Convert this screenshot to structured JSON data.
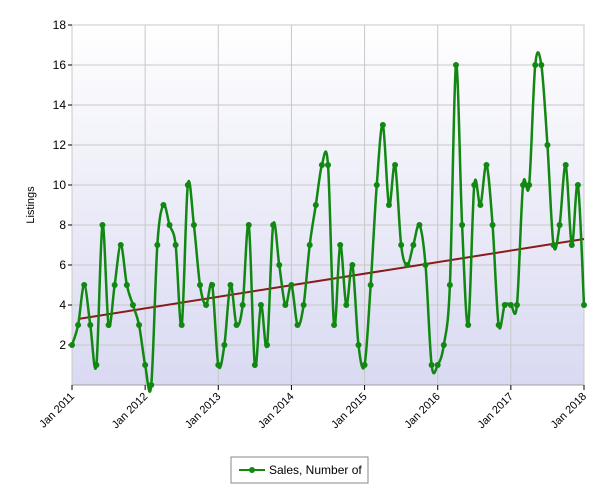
{
  "chart_data": {
    "type": "line",
    "title": "",
    "xlabel": "",
    "ylabel": "Listings",
    "ylim": [
      0,
      18
    ],
    "yticks": [
      2,
      4,
      6,
      8,
      10,
      12,
      14,
      16,
      18
    ],
    "xticks": [
      "Jan 2011",
      "Jan 2012",
      "Jan 2013",
      "Jan 2014",
      "Jan 2015",
      "Jan 2016",
      "Jan 2017",
      "Jan 2018"
    ],
    "x_start": "2011-01",
    "x_end": "2018-01",
    "grid": true,
    "legend": {
      "position": "bottom-center",
      "entries": [
        "Sales, Number of"
      ]
    },
    "colors": {
      "plot_bg_top": "#ffffff",
      "plot_bg_bottom": "#d9d9f2",
      "series": "#118811",
      "trend": "#8b1a1a",
      "grid": "#c8c8c8"
    },
    "series": [
      {
        "name": "Sales, Number of",
        "x": [
          "2011-01",
          "2011-02",
          "2011-03",
          "2011-04",
          "2011-05",
          "2011-06",
          "2011-07",
          "2011-08",
          "2011-09",
          "2011-10",
          "2011-11",
          "2011-12",
          "2012-01",
          "2012-02",
          "2012-03",
          "2012-04",
          "2012-05",
          "2012-06",
          "2012-07",
          "2012-08",
          "2012-09",
          "2012-10",
          "2012-11",
          "2012-12",
          "2013-01",
          "2013-02",
          "2013-03",
          "2013-04",
          "2013-05",
          "2013-06",
          "2013-07",
          "2013-08",
          "2013-09",
          "2013-10",
          "2013-11",
          "2013-12",
          "2014-01",
          "2014-02",
          "2014-03",
          "2014-04",
          "2014-05",
          "2014-06",
          "2014-07",
          "2014-08",
          "2014-09",
          "2014-10",
          "2014-11",
          "2014-12",
          "2015-01",
          "2015-02",
          "2015-03",
          "2015-04",
          "2015-05",
          "2015-06",
          "2015-07",
          "2015-08",
          "2015-09",
          "2015-10",
          "2015-11",
          "2015-12",
          "2016-01",
          "2016-02",
          "2016-03",
          "2016-04",
          "2016-05",
          "2016-06",
          "2016-07",
          "2016-08",
          "2016-09",
          "2016-10",
          "2016-11",
          "2016-12",
          "2017-01",
          "2017-02",
          "2017-03",
          "2017-04",
          "2017-05",
          "2017-06",
          "2017-07",
          "2017-08",
          "2017-09",
          "2017-10",
          "2017-11",
          "2017-12",
          "2018-01"
        ],
        "values": [
          2,
          3,
          5,
          3,
          1,
          8,
          3,
          5,
          7,
          5,
          4,
          3,
          1,
          0,
          7,
          9,
          8,
          7,
          3,
          10,
          8,
          5,
          4,
          5,
          1,
          2,
          5,
          3,
          4,
          8,
          1,
          4,
          2,
          8,
          6,
          4,
          5,
          3,
          4,
          7,
          9,
          11,
          11,
          3,
          7,
          4,
          6,
          2,
          1,
          5,
          10,
          13,
          9,
          11,
          7,
          6,
          7,
          8,
          6,
          1,
          1,
          2,
          5,
          16,
          8,
          3,
          10,
          9,
          11,
          8,
          3,
          4,
          4,
          4,
          10,
          10,
          16,
          16,
          12,
          7,
          8,
          11,
          7,
          10,
          4
        ]
      }
    ],
    "trendline": {
      "start": 3.3,
      "end": 7.3
    }
  }
}
